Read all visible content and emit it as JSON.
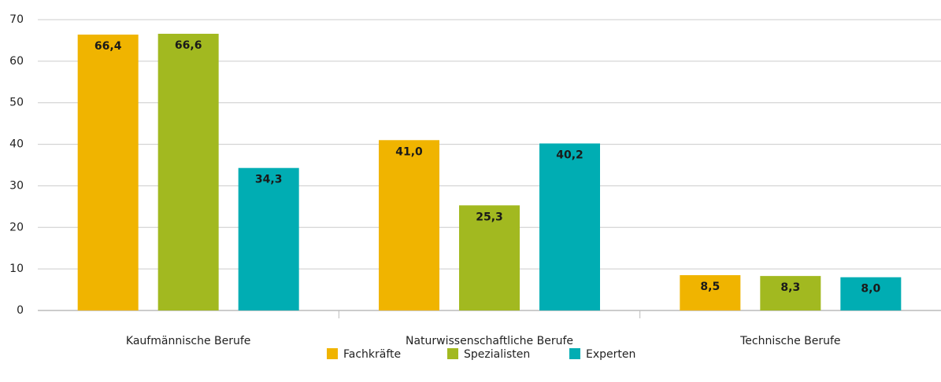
{
  "chart_data": {
    "type": "bar",
    "categories": [
      "Kaufmännische Berufe",
      "Naturwissenschaftliche Berufe",
      "Technische Berufe"
    ],
    "series": [
      {
        "name": "Fachkräfte",
        "color": "#f0b400",
        "values": [
          66.4,
          41.0,
          8.5
        ],
        "value_labels": [
          "66,4",
          "41,0",
          "8,5"
        ]
      },
      {
        "name": "Spezialisten",
        "color": "#a2b920",
        "values": [
          66.6,
          25.3,
          8.3
        ],
        "value_labels": [
          "66,6",
          "25,3",
          "8,3"
        ]
      },
      {
        "name": "Experten",
        "color": "#00adb3",
        "values": [
          34.3,
          40.2,
          8.0
        ],
        "value_labels": [
          "34,3",
          "40,2",
          "8,0"
        ]
      }
    ],
    "ylim": [
      0,
      70
    ],
    "yticks": [
      0,
      10,
      20,
      30,
      40,
      50,
      60,
      70
    ],
    "grid": true,
    "legend": "bottom"
  }
}
